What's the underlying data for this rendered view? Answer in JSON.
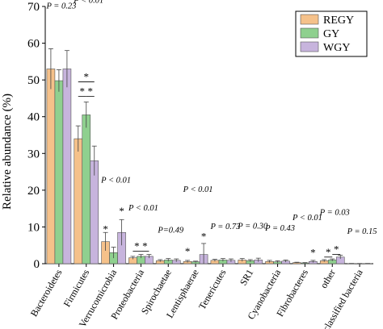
{
  "chart_data": {
    "type": "bar",
    "ylabel": "Relative abundance (%)",
    "ylim": [
      0,
      70
    ],
    "yticks": [
      0,
      10,
      20,
      30,
      40,
      50,
      60,
      70
    ],
    "categories": [
      "Bacteroidetes",
      "Firmicutes",
      "Verrucomicrobia",
      "Proteobacteria",
      "Spirochaetae",
      "Lentisphaerae",
      "Tenericutes",
      "SR1",
      "Cyanobacteria",
      "Fibrobacteres",
      "other",
      "unclassified bacteria"
    ],
    "series": [
      {
        "name": "REGY",
        "color": "#f5c18a",
        "values": [
          53.0,
          34.0,
          6.0,
          1.6,
          0.8,
          0.6,
          0.9,
          1.0,
          0.6,
          0.3,
          0.8,
          0.05
        ],
        "errors": [
          5.5,
          3.5,
          2.5,
          0.4,
          0.3,
          0.3,
          0.3,
          0.4,
          0.3,
          0.1,
          0.3,
          0.02
        ]
      },
      {
        "name": "GY",
        "color": "#8fd08f",
        "values": [
          49.8,
          40.5,
          3.0,
          2.0,
          1.0,
          0.5,
          1.0,
          0.8,
          0.5,
          0.2,
          1.0,
          0.04
        ],
        "errors": [
          3.0,
          3.5,
          1.5,
          0.5,
          0.4,
          0.2,
          0.4,
          0.3,
          0.3,
          0.1,
          0.3,
          0.02
        ]
      },
      {
        "name": "WGY",
        "color": "#c7b4dd",
        "values": [
          53.0,
          28.0,
          8.5,
          2.0,
          0.9,
          2.5,
          0.9,
          1.0,
          0.7,
          0.6,
          1.8,
          0.05
        ],
        "errors": [
          5.0,
          4.0,
          3.5,
          0.5,
          0.4,
          3.0,
          0.4,
          0.5,
          0.3,
          0.3,
          0.5,
          0.02
        ]
      }
    ],
    "pvalues": [
      "P = 0.23",
      "P < 0.01",
      "P < 0.01",
      "P < 0.01",
      "P=0.49",
      "P < 0.01",
      "P = 0.73",
      "P = 0.30",
      "P = 0.43",
      "P < 0.01",
      "P = 0.03",
      "P = 0.15"
    ],
    "star": "*",
    "legend_position": "top-right"
  }
}
